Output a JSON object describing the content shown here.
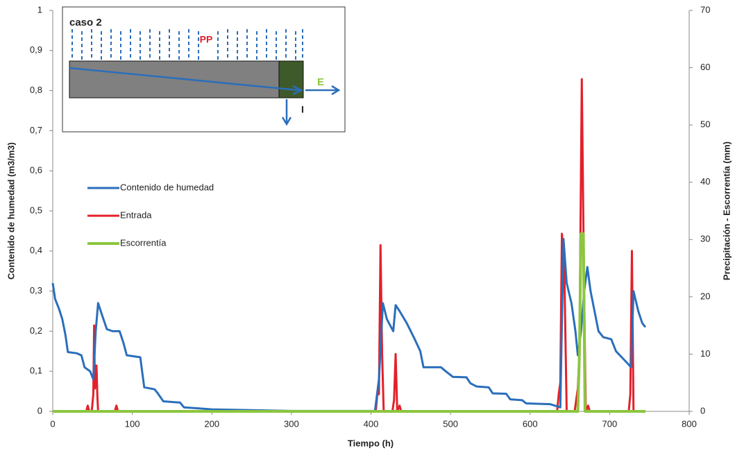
{
  "chart_data": {
    "type": "line",
    "xlabel": "Tiempo (h)",
    "ylabel": "Contenido de humedad (m3/m3)",
    "y2label": "Precipitación - Escorrentía (mm)",
    "xlim": [
      0,
      800
    ],
    "xticks": [
      0,
      100,
      200,
      300,
      400,
      500,
      600,
      700,
      800
    ],
    "ylim": [
      0,
      1
    ],
    "yticks": [
      0,
      {
        "value": 0.1,
        "label": "0,1"
      },
      {
        "value": 0.2,
        "label": "0,2"
      },
      {
        "value": 0.3,
        "label": "0,3"
      },
      {
        "value": 0.4,
        "label": "0,4"
      },
      {
        "value": 0.5,
        "label": "0,5"
      },
      {
        "value": 0.6,
        "label": "0,6"
      },
      {
        "value": 0.7,
        "label": "0,7"
      },
      {
        "value": 0.8,
        "label": "0,8"
      },
      {
        "value": 0.9,
        "label": "0,9"
      },
      1
    ],
    "y2lim": [
      0,
      70
    ],
    "y2ticks": [
      0,
      10,
      20,
      30,
      40,
      50,
      60,
      70
    ],
    "grid": false,
    "legend": "left",
    "series": [
      {
        "name": "Contenido de humedad",
        "color": "#2a6ebb",
        "x": [
          0,
          3,
          8,
          12,
          16,
          19,
          30,
          36,
          40,
          47,
          51,
          54,
          57,
          62,
          68,
          75,
          84,
          89,
          93,
          110,
          115,
          128,
          132,
          139,
          160,
          165,
          180,
          200,
          250,
          300,
          405,
          410,
          415,
          420,
          428,
          431,
          436,
          445,
          455,
          462,
          466,
          488,
          494,
          503,
          520,
          525,
          533,
          548,
          553,
          570,
          575,
          590,
          595,
          625,
          635,
          638,
          642,
          646,
          652,
          657,
          660,
          664,
          668,
          672,
          676,
          681,
          686,
          692,
          702,
          708,
          720,
          727,
          730,
          736,
          741,
          745
        ],
        "values": [
          0.32,
          0.28,
          0.255,
          0.23,
          0.19,
          0.148,
          0.145,
          0.14,
          0.11,
          0.1,
          0.08,
          0.2,
          0.27,
          0.24,
          0.205,
          0.2,
          0.2,
          0.17,
          0.14,
          0.135,
          0.06,
          0.055,
          0.045,
          0.025,
          0.022,
          0.01,
          0.008,
          0.005,
          0.003,
          0.001,
          0.001,
          0.08,
          0.27,
          0.23,
          0.2,
          0.265,
          0.25,
          0.22,
          0.18,
          0.15,
          0.11,
          0.11,
          0.1,
          0.086,
          0.085,
          0.07,
          0.062,
          0.06,
          0.045,
          0.044,
          0.03,
          0.028,
          0.02,
          0.018,
          0.012,
          0.01,
          0.43,
          0.32,
          0.27,
          0.2,
          0.14,
          0.2,
          0.3,
          0.36,
          0.3,
          0.25,
          0.2,
          0.185,
          0.18,
          0.15,
          0.125,
          0.11,
          0.3,
          0.25,
          0.22,
          0.21
        ]
      },
      {
        "name": "Entrada",
        "color": "#e3202a",
        "axis": "y2",
        "x": [
          0,
          42,
          44,
          46,
          49,
          51,
          52,
          53,
          55,
          56,
          57,
          78,
          80,
          82,
          406,
          408,
          410,
          412,
          414,
          416,
          427,
          429,
          431,
          433,
          436,
          438,
          634,
          636,
          638,
          640,
          643,
          646,
          656,
          658,
          660,
          662,
          665,
          668,
          670,
          673,
          675,
          724,
          726,
          728,
          730,
          745
        ],
        "values": [
          0,
          0,
          1,
          0,
          0,
          3,
          15,
          4,
          8,
          3,
          0,
          0,
          1,
          0,
          0,
          3,
          3,
          29,
          10,
          0,
          0,
          2,
          10,
          0,
          1,
          0,
          0,
          3,
          5,
          31,
          25,
          0,
          0,
          2,
          4,
          10,
          58,
          20,
          0,
          1,
          0,
          0,
          3,
          28,
          0,
          0
        ]
      },
      {
        "name": "Escorrentía",
        "color": "#8cc63f",
        "axis": "y2",
        "x": [
          0,
          660,
          662,
          664,
          667,
          669,
          745
        ],
        "values": [
          0,
          0,
          10,
          31,
          31,
          0,
          0
        ]
      }
    ],
    "inset": {
      "title": "caso 2",
      "labels": [
        "PP",
        "E",
        "I"
      ]
    }
  }
}
